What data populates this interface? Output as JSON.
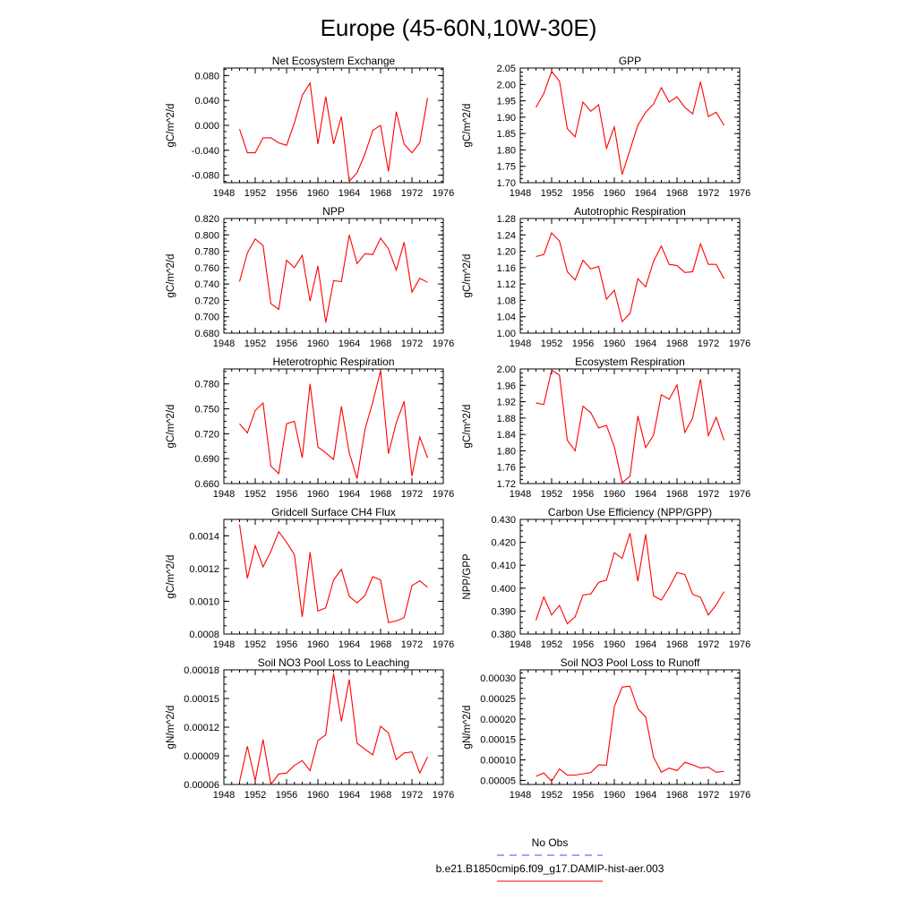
{
  "title": "Europe (45-60N,10W-30E)",
  "colors": {
    "model": "#ff0000",
    "obs": "#4444ff"
  },
  "legend": [
    {
      "label": "No Obs",
      "style": "dashed",
      "color": "#4444ff"
    },
    {
      "label": "b.e21.B1850cmip6.f09_g17.DAMIP-hist-aer.003",
      "style": "solid",
      "color": "#ff0000"
    }
  ],
  "chart_data": [
    {
      "type": "line",
      "title": "Net Ecosystem Exchange",
      "ylabel": "gC/m^2/d",
      "xlim": [
        1948,
        1976
      ],
      "x_ticks": [
        "1948",
        "1952",
        "1956",
        "1960",
        "1964",
        "1968",
        "1972",
        "1976"
      ],
      "ylim": [
        -0.092,
        0.092
      ],
      "y_ticks": [
        "-0.080",
        "-0.040",
        "0.000",
        "0.040",
        "0.080"
      ],
      "x": [
        1950,
        1951,
        1952,
        1953,
        1954,
        1955,
        1956,
        1957,
        1958,
        1959,
        1960,
        1961,
        1962,
        1963,
        1964,
        1965,
        1966,
        1967,
        1968,
        1969,
        1970,
        1971,
        1972,
        1973,
        1974
      ],
      "series": [
        {
          "values": [
            -0.006,
            -0.044,
            -0.044,
            -0.02,
            -0.02,
            -0.028,
            -0.032,
            0.004,
            0.048,
            0.068,
            -0.03,
            0.046,
            -0.03,
            0.014,
            -0.09,
            -0.076,
            -0.046,
            -0.008,
            0.0,
            -0.074,
            0.022,
            -0.03,
            -0.044,
            -0.028,
            0.044
          ]
        }
      ]
    },
    {
      "type": "line",
      "title": "GPP",
      "ylabel": "gC/m^2/d",
      "xlim": [
        1948,
        1976
      ],
      "x_ticks": [
        "1948",
        "1952",
        "1956",
        "1960",
        "1964",
        "1968",
        "1972",
        "1976"
      ],
      "ylim": [
        1.7,
        2.05
      ],
      "y_ticks": [
        "1.70",
        "1.75",
        "1.80",
        "1.85",
        "1.90",
        "1.95",
        "2.00",
        "2.05"
      ],
      "x": [
        1950,
        1951,
        1952,
        1953,
        1954,
        1955,
        1956,
        1957,
        1958,
        1959,
        1960,
        1961,
        1962,
        1963,
        1964,
        1965,
        1966,
        1967,
        1968,
        1969,
        1970,
        1971,
        1972,
        1973,
        1974
      ],
      "series": [
        {
          "values": [
            1.93,
            1.972,
            2.04,
            2.01,
            1.865,
            1.84,
            1.946,
            1.918,
            1.938,
            1.805,
            1.87,
            1.725,
            1.8,
            1.875,
            1.915,
            1.94,
            1.99,
            1.946,
            1.962,
            1.93,
            1.91,
            2.008,
            1.902,
            1.915,
            1.875
          ]
        }
      ]
    },
    {
      "type": "line",
      "title": "NPP",
      "ylabel": "gC/m^2/d",
      "xlim": [
        1948,
        1976
      ],
      "x_ticks": [
        "1948",
        "1952",
        "1956",
        "1960",
        "1964",
        "1968",
        "1972",
        "1976"
      ],
      "ylim": [
        0.68,
        0.82
      ],
      "y_ticks": [
        "0.680",
        "0.700",
        "0.720",
        "0.740",
        "0.760",
        "0.780",
        "0.800",
        "0.820"
      ],
      "x": [
        1950,
        1951,
        1952,
        1953,
        1954,
        1955,
        1956,
        1957,
        1958,
        1959,
        1960,
        1961,
        1962,
        1963,
        1964,
        1965,
        1966,
        1967,
        1968,
        1969,
        1970,
        1971,
        1972,
        1973,
        1974
      ],
      "series": [
        {
          "values": [
            0.743,
            0.778,
            0.795,
            0.787,
            0.716,
            0.709,
            0.769,
            0.76,
            0.775,
            0.719,
            0.762,
            0.693,
            0.744,
            0.743,
            0.8,
            0.765,
            0.777,
            0.776,
            0.796,
            0.783,
            0.757,
            0.791,
            0.73,
            0.747,
            0.742
          ]
        }
      ]
    },
    {
      "type": "line",
      "title": "Autotrophic Respiration",
      "ylabel": "gC/m^2/d",
      "xlim": [
        1948,
        1976
      ],
      "x_ticks": [
        "1948",
        "1952",
        "1956",
        "1960",
        "1964",
        "1968",
        "1972",
        "1976"
      ],
      "ylim": [
        1.0,
        1.28
      ],
      "y_ticks": [
        "1.00",
        "1.04",
        "1.08",
        "1.12",
        "1.16",
        "1.20",
        "1.24",
        "1.28"
      ],
      "x": [
        1950,
        1951,
        1952,
        1953,
        1954,
        1955,
        1956,
        1957,
        1958,
        1959,
        1960,
        1961,
        1962,
        1963,
        1964,
        1965,
        1966,
        1967,
        1968,
        1969,
        1970,
        1971,
        1972,
        1973,
        1974
      ],
      "series": [
        {
          "values": [
            1.187,
            1.192,
            1.245,
            1.225,
            1.15,
            1.13,
            1.178,
            1.157,
            1.163,
            1.083,
            1.105,
            1.028,
            1.048,
            1.133,
            1.113,
            1.175,
            1.213,
            1.168,
            1.165,
            1.148,
            1.15,
            1.218,
            1.168,
            1.168,
            1.133
          ]
        }
      ]
    },
    {
      "type": "line",
      "title": "Heterotrophic Respiration",
      "ylabel": "gC/m^2/d",
      "xlim": [
        1948,
        1976
      ],
      "x_ticks": [
        "1948",
        "1952",
        "1956",
        "1960",
        "1964",
        "1968",
        "1972",
        "1976"
      ],
      "ylim": [
        0.66,
        0.798
      ],
      "y_ticks": [
        "0.660",
        "0.690",
        "0.720",
        "0.750",
        "0.780"
      ],
      "x": [
        1950,
        1951,
        1952,
        1953,
        1954,
        1955,
        1956,
        1957,
        1958,
        1959,
        1960,
        1961,
        1962,
        1963,
        1964,
        1965,
        1966,
        1967,
        1968,
        1969,
        1970,
        1971,
        1972,
        1973,
        1974
      ],
      "series": [
        {
          "values": [
            0.732,
            0.721,
            0.748,
            0.757,
            0.681,
            0.672,
            0.732,
            0.735,
            0.691,
            0.78,
            0.704,
            0.697,
            0.689,
            0.753,
            0.697,
            0.666,
            0.725,
            0.758,
            0.796,
            0.696,
            0.733,
            0.759,
            0.669,
            0.716,
            0.691
          ]
        }
      ]
    },
    {
      "type": "line",
      "title": "Ecosystem Respiration",
      "ylabel": "gC/m^2/d",
      "xlim": [
        1948,
        1976
      ],
      "x_ticks": [
        "1948",
        "1952",
        "1956",
        "1960",
        "1964",
        "1968",
        "1972",
        "1976"
      ],
      "ylim": [
        1.72,
        2.0
      ],
      "y_ticks": [
        "1.72",
        "1.76",
        "1.80",
        "1.84",
        "1.88",
        "1.92",
        "1.96",
        "2.00"
      ],
      "x": [
        1950,
        1951,
        1952,
        1953,
        1954,
        1955,
        1956,
        1957,
        1958,
        1959,
        1960,
        1961,
        1962,
        1963,
        1964,
        1965,
        1966,
        1967,
        1968,
        1969,
        1970,
        1971,
        1972,
        1973,
        1974
      ],
      "series": [
        {
          "values": [
            1.917,
            1.913,
            1.997,
            1.985,
            1.826,
            1.8,
            1.909,
            1.893,
            1.856,
            1.862,
            1.81,
            1.722,
            1.738,
            1.885,
            1.808,
            1.838,
            1.937,
            1.926,
            1.961,
            1.845,
            1.88,
            1.975,
            1.837,
            1.882,
            1.826
          ]
        }
      ]
    },
    {
      "type": "line",
      "title": "Gridcell Surface CH4 Flux",
      "ylabel": "gC/m^2/d",
      "xlim": [
        1948,
        1976
      ],
      "x_ticks": [
        "1948",
        "1952",
        "1956",
        "1960",
        "1964",
        "1968",
        "1972",
        "1976"
      ],
      "ylim": [
        0.0008,
        0.0015
      ],
      "y_ticks": [
        "0.0008",
        "0.0010",
        "0.0012",
        "0.0014"
      ],
      "x": [
        1950,
        1951,
        1952,
        1953,
        1954,
        1955,
        1956,
        1957,
        1958,
        1959,
        1960,
        1961,
        1962,
        1963,
        1964,
        1965,
        1966,
        1967,
        1968,
        1969,
        1970,
        1971,
        1972,
        1973,
        1974
      ],
      "series": [
        {
          "values": [
            0.001468,
            0.00114,
            0.00134,
            0.00121,
            0.001305,
            0.001425,
            0.00136,
            0.001285,
            0.000905,
            0.0013,
            0.00094,
            0.00096,
            0.00113,
            0.001195,
            0.00103,
            0.00099,
            0.001035,
            0.00115,
            0.00113,
            0.00087,
            0.00088,
            0.0009,
            0.001095,
            0.001125,
            0.001085
          ]
        }
      ]
    },
    {
      "type": "line",
      "title": "Carbon Use Efficiency (NPP/GPP)",
      "ylabel": "NPP/GPP",
      "xlim": [
        1948,
        1976
      ],
      "x_ticks": [
        "1948",
        "1952",
        "1956",
        "1960",
        "1964",
        "1968",
        "1972",
        "1976"
      ],
      "ylim": [
        0.38,
        0.43
      ],
      "y_ticks": [
        "0.380",
        "0.390",
        "0.400",
        "0.410",
        "0.420",
        "0.430"
      ],
      "x": [
        1950,
        1951,
        1952,
        1953,
        1954,
        1955,
        1956,
        1957,
        1958,
        1959,
        1960,
        1961,
        1962,
        1963,
        1964,
        1965,
        1966,
        1967,
        1968,
        1969,
        1970,
        1971,
        1972,
        1973,
        1974
      ],
      "series": [
        {
          "values": [
            0.386,
            0.3962,
            0.3883,
            0.3925,
            0.3845,
            0.3875,
            0.397,
            0.3975,
            0.4025,
            0.4035,
            0.4155,
            0.413,
            0.424,
            0.403,
            0.4235,
            0.3967,
            0.3948,
            0.4003,
            0.4068,
            0.406,
            0.3973,
            0.396,
            0.3883,
            0.3927,
            0.3985
          ]
        }
      ]
    },
    {
      "type": "line",
      "title": "Soil NO3 Pool Loss to Leaching",
      "ylabel": "gN/m^2/d",
      "xlim": [
        1948,
        1976
      ],
      "x_ticks": [
        "1948",
        "1952",
        "1956",
        "1960",
        "1964",
        "1968",
        "1972",
        "1976"
      ],
      "ylim": [
        6e-05,
        0.00018
      ],
      "y_ticks": [
        "0.00006",
        "0.00009",
        "0.00012",
        "0.00015",
        "0.00018"
      ],
      "x": [
        1950,
        1951,
        1952,
        1953,
        1954,
        1955,
        1956,
        1957,
        1958,
        1959,
        1960,
        1961,
        1962,
        1963,
        1964,
        1965,
        1966,
        1967,
        1968,
        1969,
        1970,
        1971,
        1972,
        1973,
        1974
      ],
      "series": [
        {
          "values": [
            6.3e-05,
            0.0001,
            6.4e-05,
            0.000107,
            6e-05,
            7.1e-05,
            7.2e-05,
            8e-05,
            8.5e-05,
            7.45e-05,
            0.000106,
            0.000112,
            0.000176,
            0.000126,
            0.00017,
            0.000103,
            9.7e-05,
            9.1e-05,
            0.000121,
            0.000114,
            8.6e-05,
            9.3e-05,
            9.4e-05,
            7.2e-05,
            8.9e-05
          ]
        }
      ]
    },
    {
      "type": "line",
      "title": "Soil NO3 Pool Loss to Runoff",
      "ylabel": "gN/m^2/d",
      "xlim": [
        1948,
        1976
      ],
      "x_ticks": [
        "1948",
        "1952",
        "1956",
        "1960",
        "1964",
        "1968",
        "1972",
        "1976"
      ],
      "ylim": [
        4e-05,
        0.00032
      ],
      "y_ticks": [
        "0.00005",
        "0.00010",
        "0.00015",
        "0.00020",
        "0.00025",
        "0.00030"
      ],
      "x": [
        1950,
        1951,
        1952,
        1953,
        1954,
        1955,
        1956,
        1957,
        1958,
        1959,
        1960,
        1961,
        1962,
        1963,
        1964,
        1965,
        1966,
        1967,
        1968,
        1969,
        1970,
        1971,
        1972,
        1973,
        1974
      ],
      "series": [
        {
          "values": [
            6e-05,
            6.8e-05,
            4.8e-05,
            7.8e-05,
            6.3e-05,
            6.3e-05,
            6.6e-05,
            6.9e-05,
            8.8e-05,
            8.7e-05,
            0.00023,
            0.000278,
            0.00028,
            0.000225,
            0.000205,
            0.000107,
            7e-05,
            8e-05,
            7.4e-05,
            9.4e-05,
            8.8e-05,
            8e-05,
            8.2e-05,
            7e-05,
            7.2e-05
          ]
        }
      ]
    }
  ]
}
